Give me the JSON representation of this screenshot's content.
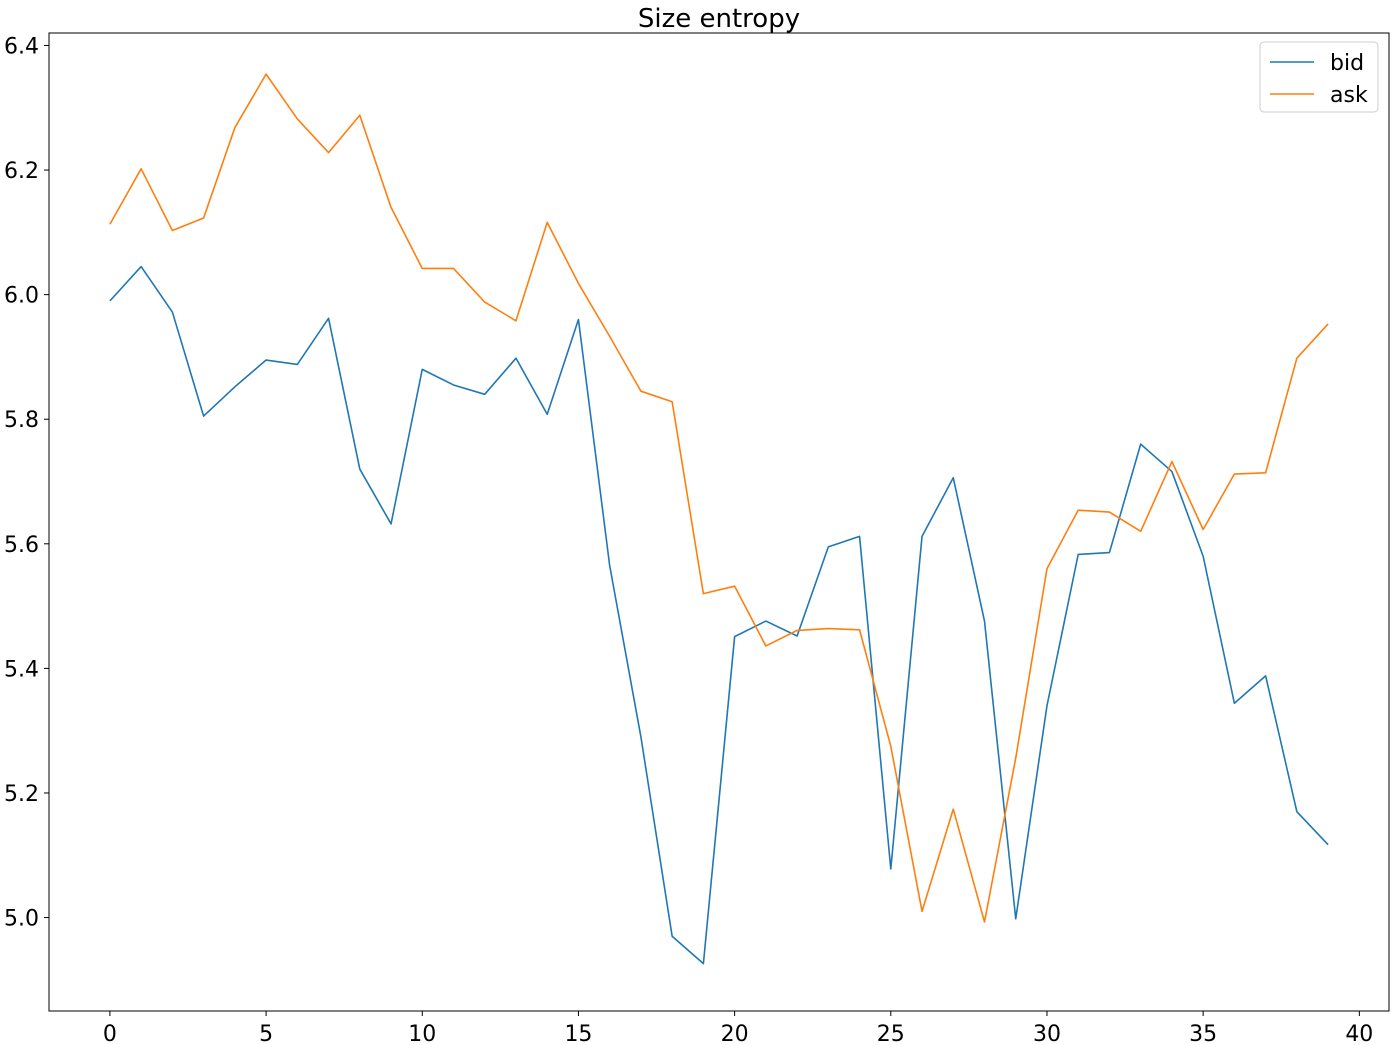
{
  "chart_data": {
    "type": "line",
    "title": "Size entropy",
    "xlabel": "",
    "ylabel": "",
    "xlim": [
      -1.95,
      40.95
    ],
    "ylim": [
      4.85,
      6.42
    ],
    "xticks": [
      0,
      5,
      10,
      15,
      20,
      25,
      30,
      35,
      40
    ],
    "yticks": [
      5.0,
      5.2,
      5.4,
      5.6,
      5.8,
      6.0,
      6.2,
      6.4
    ],
    "ytick_labels": [
      "5.0",
      "5.2",
      "5.4",
      "5.6",
      "5.8",
      "6.0",
      "6.2",
      "6.4"
    ],
    "grid": false,
    "legend_position": "top-right",
    "x": [
      0,
      1,
      2,
      3,
      4,
      5,
      6,
      7,
      8,
      9,
      10,
      11,
      12,
      13,
      14,
      15,
      16,
      17,
      18,
      19,
      20,
      21,
      22,
      23,
      24,
      25,
      26,
      27,
      28,
      29,
      30,
      31,
      32,
      33,
      34,
      35,
      36,
      37,
      38,
      39
    ],
    "series": [
      {
        "name": "bid",
        "color": "#1f77b4",
        "values": [
          5.99,
          6.045,
          5.972,
          5.805,
          5.852,
          5.895,
          5.888,
          5.962,
          5.72,
          5.632,
          5.88,
          5.855,
          5.84,
          5.898,
          5.808,
          5.96,
          5.565,
          5.29,
          4.97,
          4.926,
          5.451,
          5.476,
          5.452,
          5.595,
          5.612,
          5.078,
          5.612,
          5.706,
          5.476,
          4.998,
          5.34,
          5.583,
          5.586,
          5.76,
          5.716,
          5.58,
          5.344,
          5.388,
          5.17,
          5.117
        ]
      },
      {
        "name": "ask",
        "color": "#ff7f0e",
        "values": [
          6.113,
          6.202,
          6.103,
          6.123,
          6.268,
          6.354,
          6.282,
          6.228,
          6.288,
          6.14,
          6.042,
          6.042,
          5.988,
          5.958,
          6.116,
          6.018,
          5.933,
          5.845,
          5.828,
          5.52,
          5.532,
          5.436,
          5.461,
          5.464,
          5.462,
          5.275,
          5.01,
          5.174,
          4.993,
          5.256,
          5.56,
          5.654,
          5.651,
          5.62,
          5.732,
          5.623,
          5.712,
          5.714,
          5.898,
          5.953
        ]
      }
    ]
  }
}
